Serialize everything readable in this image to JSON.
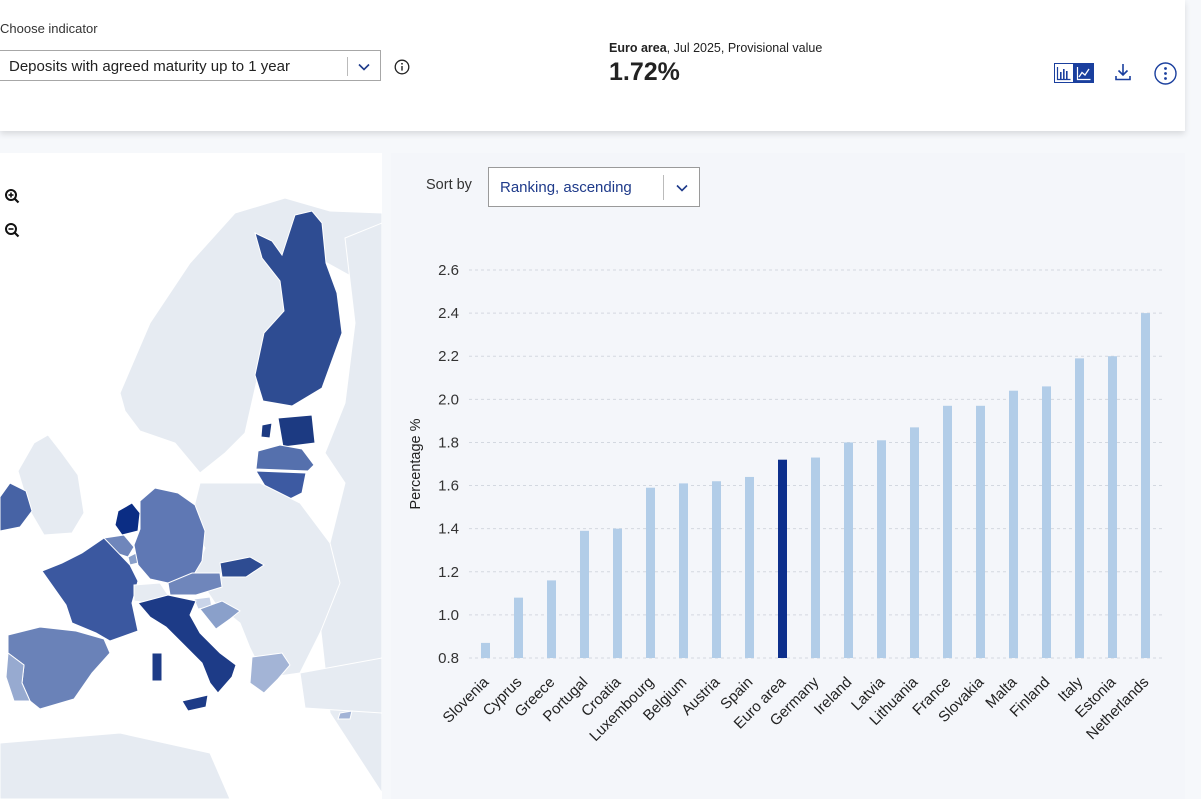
{
  "header": {
    "choose_label": "Choose indicator",
    "indicator_value": "Deposits with agreed maturity up to 1 year",
    "kpi_area": "Euro area",
    "kpi_rest": ", Jul 2025, Provisional value",
    "kpi_value": "1.72%"
  },
  "sort": {
    "label": "Sort by",
    "value": "Ranking, ascending"
  },
  "icons": {
    "bar": "bar-chart-icon",
    "line": "line-chart-icon",
    "download": "download-icon",
    "more": "more-vertical-icon",
    "info": "info-icon",
    "zoom_in": "zoom-in-icon",
    "zoom_out": "zoom-out-icon"
  },
  "colors": {
    "bar": "#b2cde8",
    "highlight": "#0d2f8c",
    "accent": "#1a3f9e"
  },
  "chart_data": {
    "type": "bar",
    "ylabel": "Percentage %",
    "ylim": [
      0.8,
      2.6
    ],
    "yticks": [
      "0.8",
      "1.0",
      "1.2",
      "1.4",
      "1.6",
      "1.8",
      "2.0",
      "2.2",
      "2.4",
      "2.6"
    ],
    "categories": [
      "Slovenia",
      "Cyprus",
      "Greece",
      "Portugal",
      "Croatia",
      "Luxembourg",
      "Belgium",
      "Austria",
      "Spain",
      "Euro area",
      "Germany",
      "Ireland",
      "Latvia",
      "Lithuania",
      "France",
      "Slovakia",
      "Malta",
      "Finland",
      "Italy",
      "Estonia",
      "Netherlands"
    ],
    "values": [
      0.87,
      1.08,
      1.16,
      1.39,
      1.4,
      1.59,
      1.61,
      1.62,
      1.64,
      1.72,
      1.73,
      1.8,
      1.81,
      1.87,
      1.97,
      1.97,
      2.04,
      2.06,
      2.19,
      2.2,
      2.4
    ],
    "highlight": "Euro area",
    "grid": true
  }
}
